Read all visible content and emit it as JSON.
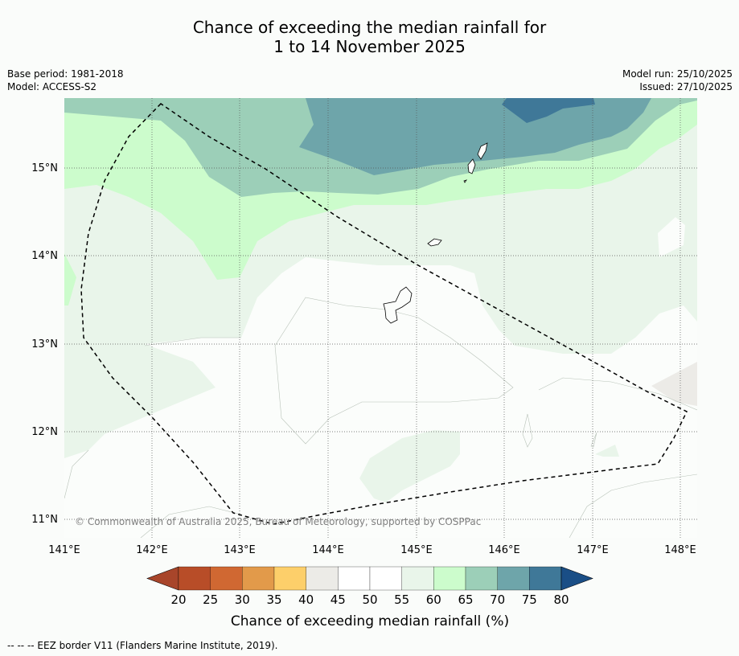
{
  "title": {
    "line1": "Chance of exceeding the median rainfall for",
    "line2": "1 to 14 November 2025"
  },
  "meta_left": {
    "base_period": "Base period: 1981-2018",
    "model": "Model: ACCESS-S2"
  },
  "meta_right": {
    "model_run": "Model run: 25/10/2025",
    "issued": "Issued: 27/10/2025"
  },
  "map": {
    "latitude_labels": [
      "15°N",
      "14°N",
      "13°N",
      "12°N",
      "11°N"
    ],
    "longitude_labels": [
      "141°E",
      "142°E",
      "143°E",
      "144°E",
      "145°E",
      "146°E",
      "147°E",
      "148°E"
    ],
    "copyright": "© Commonwealth of Australia 2025, Bureau of Meteorology, supported by COSPPac"
  },
  "colorbar": {
    "ticks": [
      "20",
      "25",
      "30",
      "35",
      "40",
      "45",
      "50",
      "55",
      "60",
      "65",
      "70",
      "75",
      "80"
    ],
    "title": "Chance of exceeding median rainfall (%)",
    "colors": [
      "#a8452a",
      "#b84d28",
      "#d06832",
      "#e29a4a",
      "#fdcf6a",
      "#ecebe7",
      "#ffffff",
      "#ffffff",
      "#e9f5ea",
      "#ccfccc",
      "#9ccfb8",
      "#6ea5aa",
      "#3f7898",
      "#1a4e86"
    ]
  },
  "footnote": "--  --  -- EEZ border V11 (Flanders Marine Institute, 2019)."
}
